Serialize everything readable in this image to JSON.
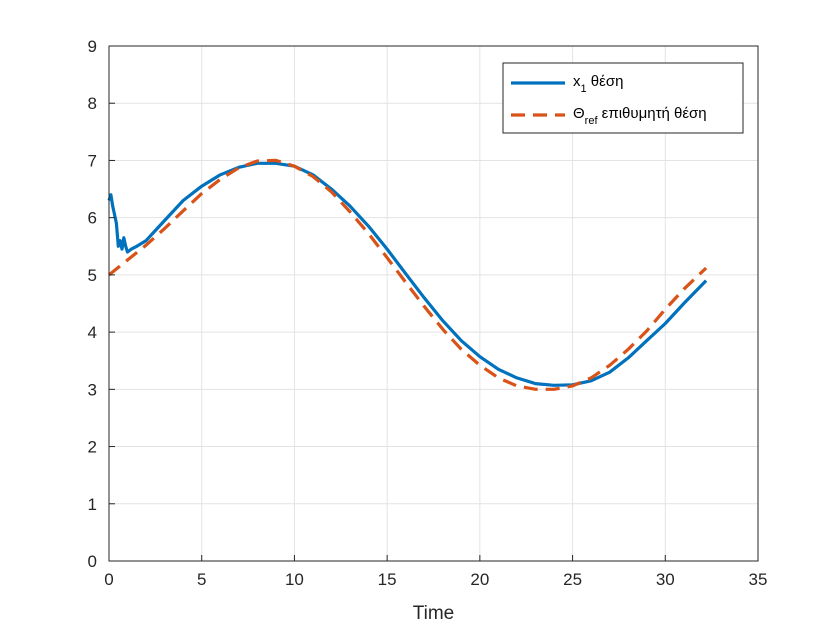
{
  "chart_data": {
    "type": "line",
    "xlabel": "Time",
    "ylabel": "",
    "xlim": [
      0,
      35
    ],
    "ylim": [
      0,
      9
    ],
    "xticks": [
      "0",
      "5",
      "10",
      "15",
      "20",
      "25",
      "30",
      "35"
    ],
    "yticks": [
      "0",
      "1",
      "2",
      "3",
      "4",
      "5",
      "6",
      "7",
      "8",
      "9"
    ],
    "grid": true,
    "legend_position": "top-right",
    "series": [
      {
        "name": "x",
        "name_subscript": "1",
        "name_suffix": " θέση",
        "color": "#0072BD",
        "style": "solid",
        "x": [
          0,
          0.1,
          0.2,
          0.3,
          0.4,
          0.5,
          0.6,
          0.7,
          0.8,
          0.9,
          1.0,
          1.2,
          1.5,
          2,
          3,
          4,
          5,
          6,
          7,
          8,
          9,
          10,
          11,
          12,
          13,
          14,
          15,
          16,
          17,
          18,
          19,
          20,
          21,
          22,
          23,
          24,
          25,
          26,
          27,
          28,
          29,
          30,
          31,
          32.2
        ],
        "y": [
          6.3,
          6.4,
          6.2,
          6.05,
          5.9,
          5.5,
          5.6,
          5.45,
          5.65,
          5.5,
          5.4,
          5.45,
          5.5,
          5.6,
          5.95,
          6.3,
          6.55,
          6.75,
          6.88,
          6.95,
          6.95,
          6.9,
          6.75,
          6.5,
          6.2,
          5.85,
          5.45,
          5.02,
          4.6,
          4.2,
          3.85,
          3.57,
          3.35,
          3.2,
          3.1,
          3.07,
          3.08,
          3.15,
          3.3,
          3.55,
          3.85,
          4.15,
          4.5,
          4.9
        ]
      },
      {
        "name": "Θ",
        "name_subscript": "ref",
        "name_suffix": " επιθυμητή θέση",
        "color": "#D95319",
        "style": "dashed",
        "x": [
          0,
          1,
          2,
          3,
          4,
          5,
          6,
          7,
          8,
          9,
          10,
          11,
          12,
          13,
          14,
          15,
          16,
          17,
          18,
          19,
          20,
          21,
          22,
          23,
          24,
          25,
          26,
          27,
          28,
          29,
          30,
          31,
          32.2
        ],
        "y": [
          5.0,
          5.26,
          5.52,
          5.81,
          6.12,
          6.42,
          6.67,
          6.87,
          6.99,
          7.0,
          6.9,
          6.72,
          6.45,
          6.1,
          5.72,
          5.3,
          4.87,
          4.45,
          4.05,
          3.7,
          3.42,
          3.2,
          3.06,
          3.0,
          3.0,
          3.06,
          3.2,
          3.42,
          3.7,
          4.02,
          4.4,
          4.75,
          5.12
        ]
      }
    ]
  }
}
